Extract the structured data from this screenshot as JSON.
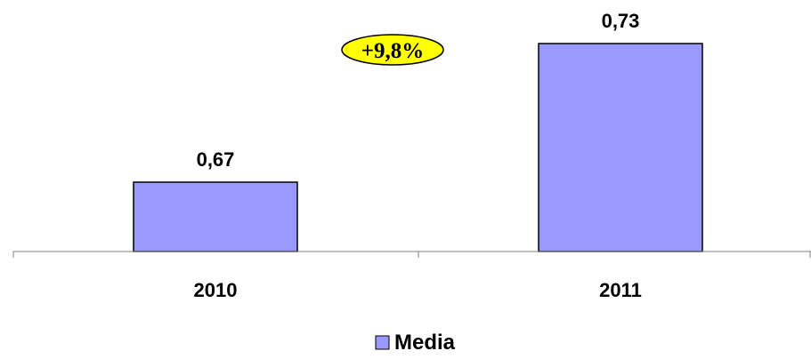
{
  "chart_data": {
    "type": "bar",
    "categories": [
      "2010",
      "2011"
    ],
    "series": [
      {
        "name": "Media",
        "values": [
          0.67,
          0.73
        ],
        "value_labels": [
          "0,67",
          "0,73"
        ]
      }
    ],
    "annotation": "+9,8%",
    "legend_position": "bottom",
    "grid": false,
    "colors": {
      "bar_fill": "#9999FF",
      "bar_stroke": "#000000",
      "badge_fill": "#FFFF00",
      "axis": "#808080"
    }
  }
}
